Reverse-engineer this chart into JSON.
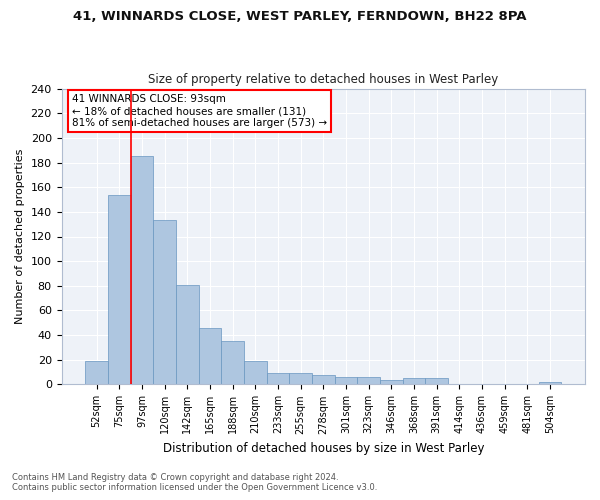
{
  "title_line1": "41, WINNARDS CLOSE, WEST PARLEY, FERNDOWN, BH22 8PA",
  "title_line2": "Size of property relative to detached houses in West Parley",
  "xlabel": "Distribution of detached houses by size in West Parley",
  "ylabel": "Number of detached properties",
  "bar_color": "#aec6e0",
  "bar_edge_color": "#6896c0",
  "categories": [
    "52sqm",
    "75sqm",
    "97sqm",
    "120sqm",
    "142sqm",
    "165sqm",
    "188sqm",
    "210sqm",
    "233sqm",
    "255sqm",
    "278sqm",
    "301sqm",
    "323sqm",
    "346sqm",
    "368sqm",
    "391sqm",
    "414sqm",
    "436sqm",
    "459sqm",
    "481sqm",
    "504sqm"
  ],
  "values": [
    19,
    154,
    185,
    133,
    81,
    46,
    35,
    19,
    9,
    9,
    8,
    6,
    6,
    4,
    5,
    5,
    0,
    0,
    0,
    0,
    2
  ],
  "ylim": [
    0,
    240
  ],
  "yticks": [
    0,
    20,
    40,
    60,
    80,
    100,
    120,
    140,
    160,
    180,
    200,
    220,
    240
  ],
  "vline_x": 1.5,
  "annotation_text": "41 WINNARDS CLOSE: 93sqm\n← 18% of detached houses are smaller (131)\n81% of semi-detached houses are larger (573) →",
  "annotation_box_color": "white",
  "annotation_box_edge": "red",
  "vline_color": "red",
  "background_color": "#eef2f8",
  "grid_color": "white",
  "footer_line1": "Contains HM Land Registry data © Crown copyright and database right 2024.",
  "footer_line2": "Contains public sector information licensed under the Open Government Licence v3.0."
}
